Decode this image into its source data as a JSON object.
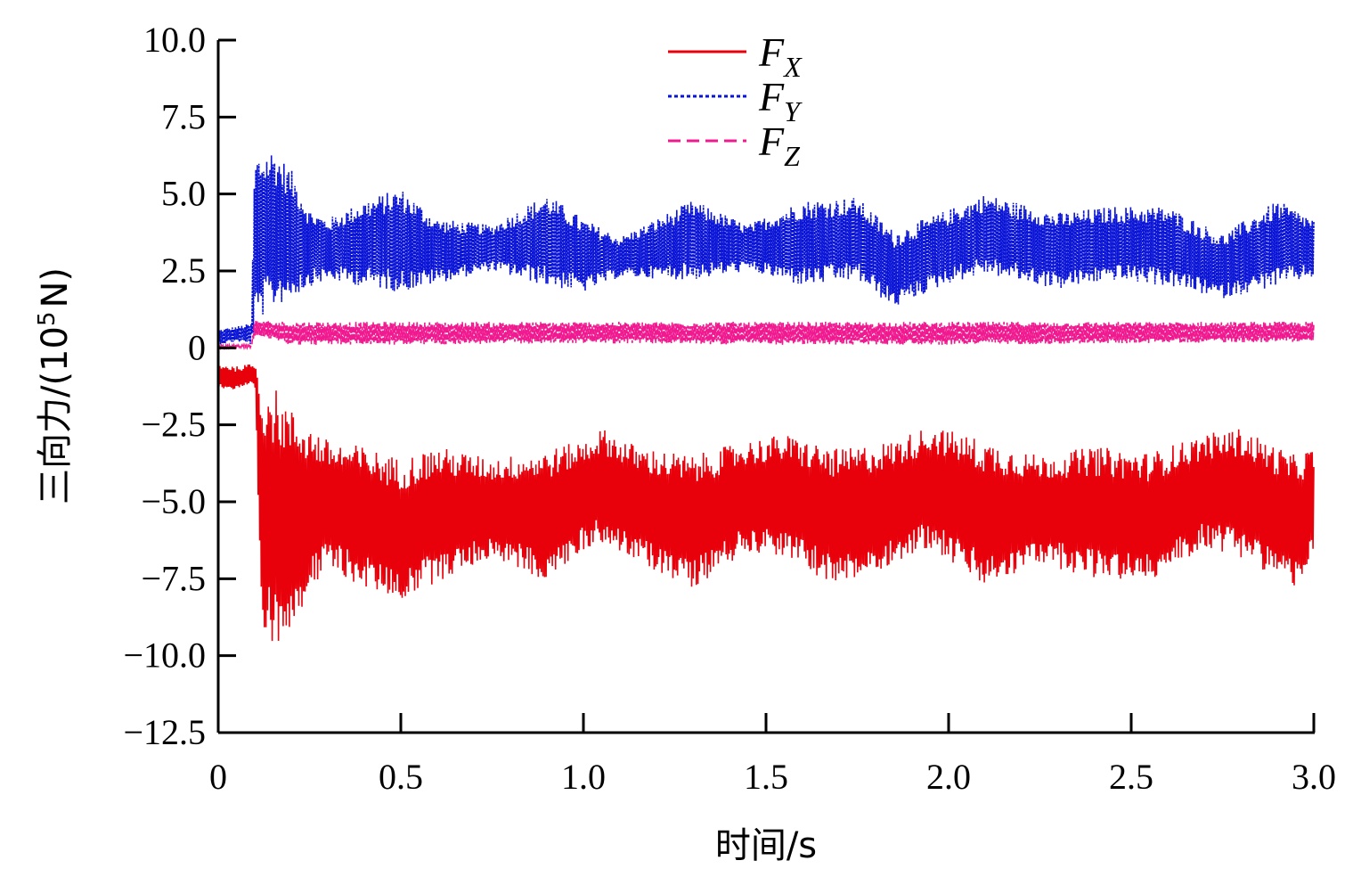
{
  "chart_data": {
    "type": "line",
    "xlabel": "时间/s",
    "ylabel_prefix": "三向力/(10",
    "ylabel_exponent": "5",
    "ylabel_suffix": "N)",
    "xlim": [
      0,
      3.0
    ],
    "ylim": [
      -12.5,
      10.0
    ],
    "x_ticks": [
      "0",
      "0.5",
      "1.0",
      "1.5",
      "2.0",
      "2.5",
      "3.0"
    ],
    "x_tick_values": [
      0,
      0.5,
      1.0,
      1.5,
      2.0,
      2.5,
      3.0
    ],
    "y_ticks": [
      "10.0",
      "7.5",
      "5.0",
      "2.5",
      "0",
      "−2.5",
      "−5.0",
      "−7.5",
      "−10.0",
      "−12.5"
    ],
    "y_tick_values": [
      10.0,
      7.5,
      5.0,
      2.5,
      0,
      -2.5,
      -5.0,
      -7.5,
      -10.0,
      -12.5
    ],
    "grid": false,
    "legend_position": "top-center",
    "series": [
      {
        "name": "F",
        "sub": "X",
        "color": "#e8000b",
        "dash": "solid",
        "envelope": {
          "x": [
            0,
            0.05,
            0.1,
            0.12,
            0.15,
            0.2,
            0.25,
            0.3,
            0.4,
            0.5,
            0.6,
            0.75,
            0.9,
            1.0,
            1.05,
            1.15,
            1.3,
            1.45,
            1.55,
            1.7,
            1.85,
            1.95,
            2.1,
            2.25,
            2.4,
            2.55,
            2.7,
            2.8,
            2.95,
            3.0
          ],
          "upper": [
            -0.5,
            -0.6,
            -0.5,
            -1.0,
            -1.2,
            -2.0,
            -2.5,
            -3.0,
            -3.2,
            -3.6,
            -3.2,
            -3.6,
            -3.3,
            -3.0,
            -2.6,
            -3.2,
            -3.5,
            -3.0,
            -2.8,
            -3.3,
            -3.0,
            -2.5,
            -3.0,
            -3.5,
            -3.2,
            -3.4,
            -2.8,
            -2.6,
            -3.5,
            -3.2
          ],
          "lower": [
            -1.3,
            -1.4,
            -1.2,
            -9.5,
            -9.8,
            -9.0,
            -8.0,
            -7.2,
            -7.8,
            -8.2,
            -7.6,
            -6.8,
            -7.6,
            -6.6,
            -6.3,
            -7.0,
            -7.8,
            -6.6,
            -6.8,
            -7.8,
            -7.0,
            -6.5,
            -7.8,
            -7.0,
            -7.5,
            -7.6,
            -6.5,
            -6.8,
            -7.8,
            -6.8
          ]
        }
      },
      {
        "name": "F",
        "sub": "Y",
        "color": "#0a14d6",
        "dash": "4,3",
        "envelope": {
          "x": [
            0,
            0.05,
            0.09,
            0.1,
            0.12,
            0.15,
            0.2,
            0.25,
            0.3,
            0.4,
            0.5,
            0.6,
            0.75,
            0.9,
            1.0,
            1.1,
            1.3,
            1.45,
            1.6,
            1.75,
            1.85,
            2.0,
            2.1,
            2.3,
            2.45,
            2.6,
            2.75,
            2.9,
            3.0
          ],
          "upper": [
            0.6,
            0.7,
            0.8,
            6.3,
            6.4,
            6.5,
            5.8,
            4.5,
            4.2,
            4.8,
            5.2,
            4.2,
            4.0,
            5.0,
            4.2,
            3.6,
            4.8,
            4.0,
            4.8,
            4.9,
            3.8,
            4.5,
            5.0,
            4.4,
            4.6,
            4.6,
            3.7,
            4.8,
            4.2
          ],
          "lower": [
            0.1,
            0.2,
            0.1,
            0.5,
            1.0,
            1.3,
            1.6,
            2.0,
            2.2,
            2.0,
            1.8,
            2.1,
            2.5,
            2.0,
            1.8,
            2.3,
            2.2,
            2.5,
            2.0,
            2.2,
            1.3,
            2.1,
            2.4,
            1.9,
            2.2,
            2.0,
            1.6,
            2.0,
            2.3
          ]
        }
      },
      {
        "name": "F",
        "sub": "Z",
        "color": "#f0198f",
        "dash": "14,7",
        "envelope": {
          "x": [
            0,
            0.09,
            0.1,
            0.2,
            0.5,
            1.0,
            1.5,
            2.0,
            2.5,
            3.0
          ],
          "upper": [
            0.1,
            0.1,
            0.9,
            0.85,
            0.85,
            0.85,
            0.85,
            0.85,
            0.85,
            0.85
          ],
          "lower": [
            0.0,
            0.0,
            0.4,
            0.1,
            0.1,
            0.15,
            0.1,
            0.1,
            0.15,
            0.2
          ]
        }
      }
    ]
  }
}
